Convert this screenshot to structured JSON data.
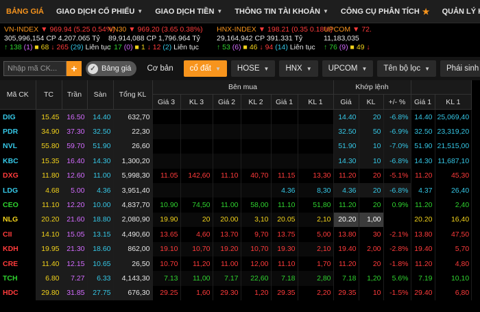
{
  "nav": {
    "items": [
      {
        "label": "BẢNG GIÁ",
        "caret": false,
        "active": true
      },
      {
        "label": "GIAO DỊCH CỔ PHIẾU",
        "caret": true
      },
      {
        "label": "GIAO DỊCH TIỀN",
        "caret": true
      },
      {
        "label": "THÔNG TIN TÀI KHOẢN",
        "caret": true
      },
      {
        "label": "CÔNG CỤ PHÂN TÍCH",
        "caret": false,
        "star": true
      },
      {
        "label": "QUẢN LÝ HẠN MỨC MARGIN",
        "caret": false
      }
    ]
  },
  "indices": [
    {
      "name": "VN-INDEX",
      "dir": "▼",
      "value": "969.94 (5.25 0.54%)",
      "color": "red",
      "vol": "305,996,154",
      "cp": "CP",
      "val": "4,207.065 Tỷ",
      "up": "138",
      "ceil": "(1)",
      "same": "68",
      "down": "265",
      "floor": "(29)",
      "session": "Liên tục"
    },
    {
      "name": "VN30",
      "dir": "▼",
      "value": "969.20 (3.65 0.38%)",
      "color": "red",
      "vol": "89,914,088",
      "cp": "CP",
      "val": "1,796.964 Tỷ",
      "up": "17",
      "ceil": "(0)",
      "same": "1",
      "down": "12",
      "floor": "(2)",
      "session": "Liên tục"
    },
    {
      "name": "HNX-INDEX",
      "dir": "▼",
      "value": "198.21 (0.35 0.18%)",
      "color": "red",
      "vol": "29,164,942",
      "cp": "CP",
      "val": "391.331 Tỷ",
      "up": "53",
      "ceil": "(6)",
      "same": "46",
      "down": "94",
      "floor": "(14)",
      "session": "Liên tục"
    },
    {
      "name": "UPCOM",
      "dir": "▼",
      "value": "72.",
      "color": "red",
      "vol": "11,183,035",
      "cp": "",
      "val": "",
      "up": "76",
      "ceil": "(9)",
      "same": "49",
      "down": "",
      "floor": "",
      "session": ""
    }
  ],
  "toolbar": {
    "search_placeholder": "Nhập mã CK...",
    "add": "+",
    "toggle_label": "Bảng giá",
    "tabs": [
      {
        "label": "Cơ bản",
        "style": "plain",
        "caret": false
      },
      {
        "label": "cổ đất",
        "style": "orange",
        "caret": true
      },
      {
        "label": "HOSE",
        "style": "dark",
        "caret": true
      },
      {
        "label": "HNX",
        "style": "dark",
        "caret": true
      },
      {
        "label": "UPCOM",
        "style": "dark",
        "caret": true
      },
      {
        "label": "Tên bộ lọc",
        "style": "dark",
        "caret": true
      },
      {
        "label": "Phái sinh",
        "style": "dark",
        "caret": false,
        "chart": true
      }
    ]
  },
  "table": {
    "group_buy": "Bên mua",
    "group_match": "Khớp lệnh",
    "headers": [
      "Mã CK",
      "TC",
      "Trần",
      "Sàn",
      "Tổng KL",
      "Giá 3",
      "KL 3",
      "Giá 2",
      "KL 2",
      "Giá 1",
      "KL 1",
      "Giá",
      "KL",
      "+/- %",
      "Giá 1",
      "KL 1"
    ],
    "sort_col": "%",
    "rows": [
      {
        "sym": "DIG",
        "c": "cyn",
        "tc": "15.45",
        "tran": "16.50",
        "san": "14.40",
        "tkl": "632,70",
        "g3": "",
        "k3": "",
        "g2": "",
        "k2": "",
        "g1": "",
        "k1": "",
        "gia": "14.40",
        "kl": "20",
        "pct": "-6.8%",
        "s1": "14.40",
        "sk1": "25,069,40",
        "mc": "cyn",
        "hl": true
      },
      {
        "sym": "PDR",
        "c": "cyn",
        "tc": "34.90",
        "tran": "37.30",
        "san": "32.50",
        "tkl": "22,30",
        "g3": "",
        "k3": "",
        "g2": "",
        "k2": "",
        "g1": "",
        "k1": "",
        "gia": "32.50",
        "kl": "50",
        "pct": "-6.9%",
        "s1": "32.50",
        "sk1": "23,319,20",
        "mc": "cyn",
        "hl": true
      },
      {
        "sym": "NVL",
        "c": "cyn",
        "tc": "55.80",
        "tran": "59.70",
        "san": "51.90",
        "tkl": "26,60",
        "g3": "",
        "k3": "",
        "g2": "",
        "k2": "",
        "g1": "",
        "k1": "",
        "gia": "51.90",
        "kl": "10",
        "pct": "-7.0%",
        "s1": "51.90",
        "sk1": "21,515,00",
        "mc": "cyn",
        "hl": true
      },
      {
        "sym": "KBC",
        "c": "cyn",
        "tc": "15.35",
        "tran": "16.40",
        "san": "14.30",
        "tkl": "1,300,20",
        "g3": "",
        "k3": "",
        "g2": "",
        "k2": "",
        "g1": "",
        "k1": "",
        "gia": "14.30",
        "kl": "10",
        "pct": "-6.8%",
        "s1": "14.30",
        "sk1": "11,687,10",
        "mc": "cyn",
        "hl": true
      },
      {
        "sym": "DXG",
        "c": "red",
        "tc": "11.80",
        "tran": "12.60",
        "san": "11.00",
        "tkl": "5,998,30",
        "g3": "11.05",
        "k3": "142,60",
        "g2": "11.10",
        "k2": "40,70",
        "g1": "11.15",
        "k1": "13,30",
        "gia": "11.20",
        "kl": "20",
        "pct": "-5.1%",
        "s1": "11.20",
        "sk1": "45,30",
        "mc": "red",
        "hl": false
      },
      {
        "sym": "LDG",
        "c": "cyn",
        "tc": "4.68",
        "tran": "5.00",
        "san": "4.36",
        "tkl": "3,951,40",
        "g3": "",
        "k3": "",
        "g2": "",
        "k2": "",
        "g1": "4.36",
        "k1": "8,30",
        "gia": "4.36",
        "kl": "20",
        "pct": "-6.8%",
        "s1": "4.37",
        "sk1": "26,40",
        "mc": "cyn",
        "hl": true
      },
      {
        "sym": "CEO",
        "c": "grn",
        "tc": "11.10",
        "tran": "12.20",
        "san": "10.00",
        "tkl": "4,837,70",
        "g3": "10.90",
        "k3": "74,50",
        "g2": "11.00",
        "k2": "58,00",
        "g1": "11.10",
        "k1": "51,80",
        "gia": "11.20",
        "kl": "20",
        "pct": "0.9%",
        "s1": "11.20",
        "sk1": "2,40",
        "mc": "grn",
        "hl": false
      },
      {
        "sym": "NLG",
        "c": "yel",
        "tc": "20.20",
        "tran": "21.60",
        "san": "18.80",
        "tkl": "2,080,90",
        "g3": "19.90",
        "k3": "20",
        "g2": "20.00",
        "k2": "3,10",
        "g1": "20.05",
        "k1": "2,10",
        "gia": "20.20",
        "kl": "1,00",
        "pct": "",
        "s1": "20.20",
        "sk1": "16,40",
        "mc": "yel",
        "hl": false
      },
      {
        "sym": "CII",
        "c": "red",
        "tc": "14.10",
        "tran": "15.05",
        "san": "13.15",
        "tkl": "4,490,60",
        "g3": "13.65",
        "k3": "4,60",
        "g2": "13.70",
        "k2": "9,70",
        "g1": "13.75",
        "k1": "5,00",
        "gia": "13.80",
        "kl": "30",
        "pct": "-2.1%",
        "s1": "13.80",
        "sk1": "47,50",
        "mc": "red",
        "hl": false
      },
      {
        "sym": "KDH",
        "c": "red",
        "tc": "19.95",
        "tran": "21.30",
        "san": "18.60",
        "tkl": "862,00",
        "g3": "19.10",
        "k3": "10,70",
        "g2": "19.20",
        "k2": "10,70",
        "g1": "19.30",
        "k1": "2,10",
        "gia": "19.40",
        "kl": "2,00",
        "pct": "-2.8%",
        "s1": "19.40",
        "sk1": "5,70",
        "mc": "red",
        "hl": false
      },
      {
        "sym": "CRE",
        "c": "red",
        "tc": "11.40",
        "tran": "12.15",
        "san": "10.65",
        "tkl": "26,50",
        "g3": "10.70",
        "k3": "11,20",
        "g2": "11.00",
        "k2": "12,00",
        "g1": "11.10",
        "k1": "1,70",
        "gia": "11.20",
        "kl": "20",
        "pct": "-1.8%",
        "s1": "11.20",
        "sk1": "4,80",
        "mc": "red",
        "hl": false
      },
      {
        "sym": "TCH",
        "c": "grn",
        "tc": "6.80",
        "tran": "7.27",
        "san": "6.33",
        "tkl": "4,143,30",
        "g3": "7.13",
        "k3": "11,00",
        "g2": "7.17",
        "k2": "22,60",
        "g1": "7.18",
        "k1": "2,80",
        "gia": "7.18",
        "kl": "1,20",
        "pct": "5.6%",
        "s1": "7.19",
        "sk1": "10,10",
        "mc": "grn",
        "hl": false
      },
      {
        "sym": "HDC",
        "c": "red",
        "tc": "29.80",
        "tran": "31.85",
        "san": "27.75",
        "tkl": "676,30",
        "g3": "29.25",
        "k3": "1,60",
        "g2": "29.30",
        "k2": "1,20",
        "g1": "29.35",
        "k1": "2,20",
        "gia": "29.35",
        "kl": "10",
        "pct": "-1.5%",
        "s1": "29.40",
        "sk1": "6,80",
        "mc": "red",
        "hl": false
      }
    ]
  },
  "colors": {
    "accent": "#f7941d",
    "up": "#2fd32f",
    "down": "#ff3b3b",
    "ref": "#f2d21b",
    "ceil": "#d36bff",
    "floor": "#35c7e6"
  }
}
